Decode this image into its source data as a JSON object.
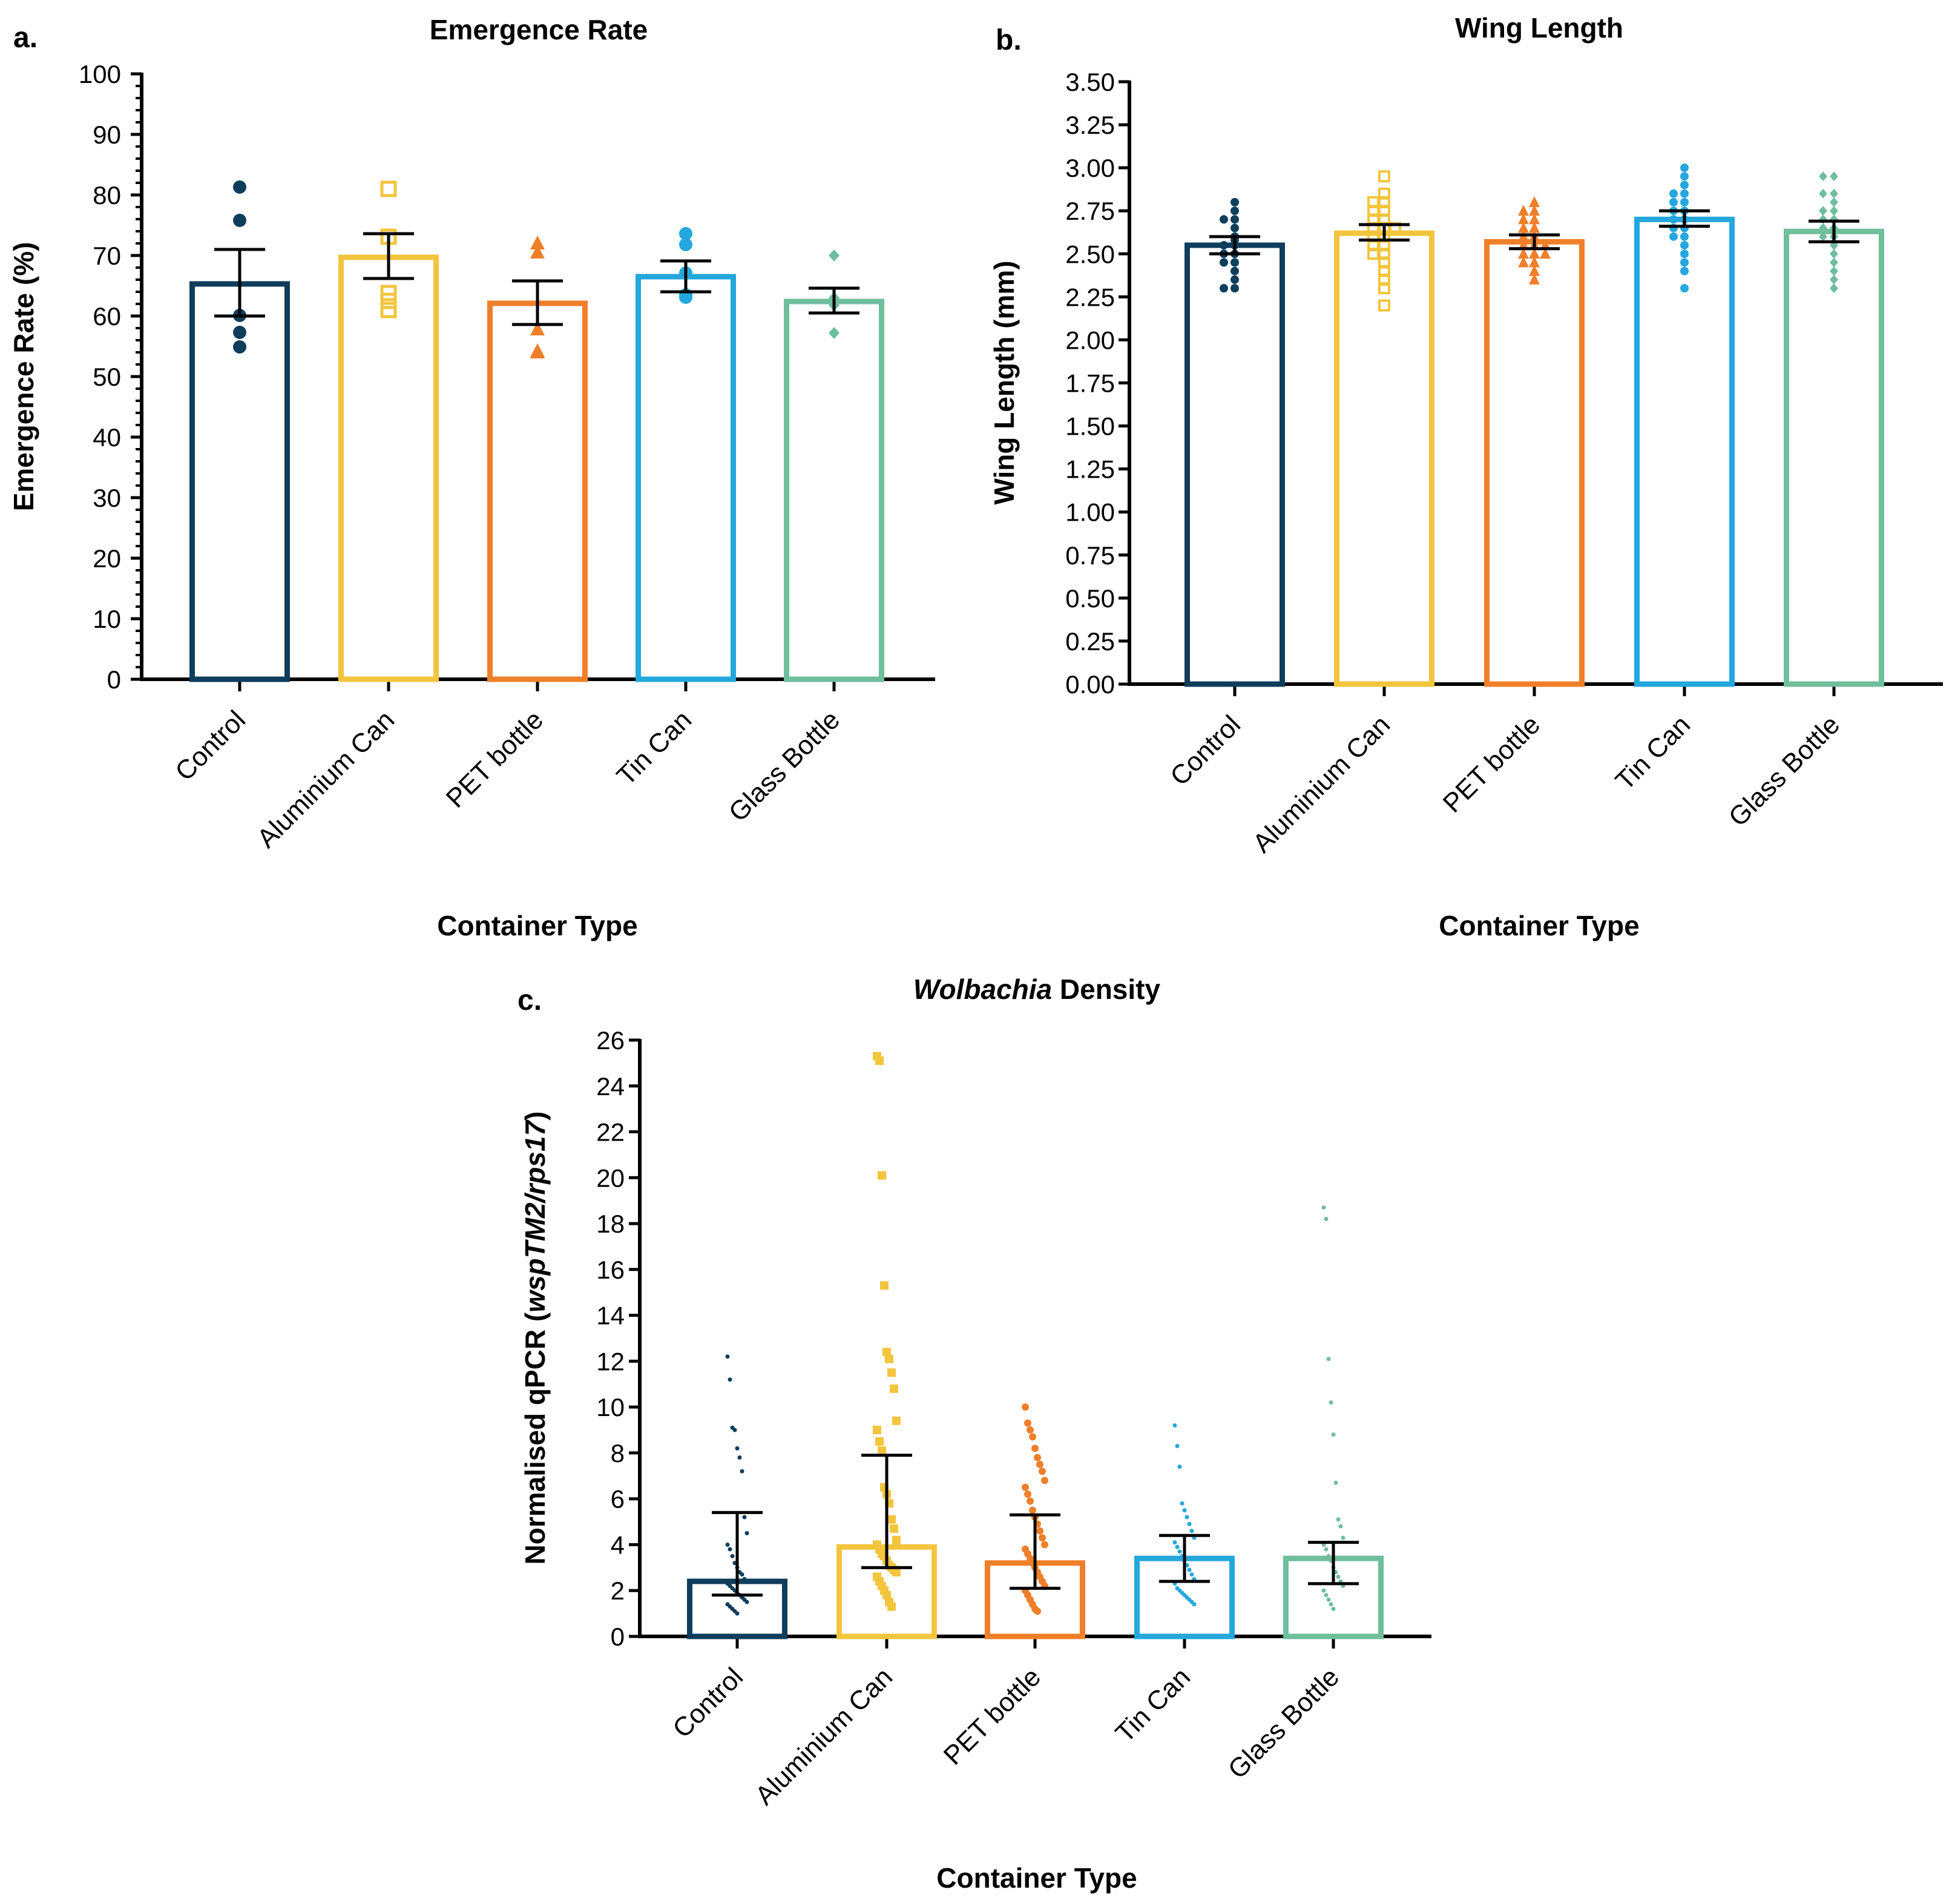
{
  "categories": [
    "Control",
    "Aluminium Can",
    "PET bottle",
    "Tin Can",
    "Glass Bottle"
  ],
  "colors": {
    "Control": "#0F3D5C",
    "Aluminium Can": "#F2C53D",
    "PET bottle": "#F07F2A",
    "Tin Can": "#24A7DC",
    "Glass Bottle": "#6FBE9C",
    "axis": "#000000"
  },
  "chart_data": [
    {
      "panel": "a.",
      "type": "bar",
      "title": "Emergence Rate",
      "xlabel": "Container Type",
      "ylabel": "Emergence Rate (%)",
      "ylim": [
        0,
        100
      ],
      "yticks": [
        "0",
        "10",
        "20",
        "30",
        "40",
        "50",
        "60",
        "70",
        "80",
        "90",
        "100"
      ],
      "marker": "circle",
      "categories": [
        "Control",
        "Aluminium Can",
        "PET bottle",
        "Tin Can",
        "Glass Bottle"
      ],
      "means": [
        65.3,
        69.7,
        62.1,
        66.5,
        62.4
      ],
      "error_low": [
        60.0,
        66.2,
        58.6,
        64.0,
        60.5
      ],
      "error_high": [
        71.0,
        73.6,
        65.8,
        69.1,
        64.6
      ],
      "points": [
        [
          81.3,
          75.8,
          60.1,
          57.3,
          54.9
        ],
        [
          81.0,
          73.1,
          63.8,
          62.5,
          61.0
        ],
        [
          72.0,
          70.5,
          57.8,
          54.2,
          54.0
        ],
        [
          73.6,
          71.8,
          67.1,
          63.5,
          63.1
        ],
        [
          70.0,
          63.0,
          62.1,
          61.8,
          57.2
        ]
      ]
    },
    {
      "panel": "b.",
      "type": "bar",
      "title": "Wing Length",
      "xlabel": "Container Type",
      "ylabel": "Wing Length (mm)",
      "ylim": [
        0,
        3.5
      ],
      "yticks": [
        "0.00",
        "0.25",
        "0.50",
        "0.75",
        "1.00",
        "1.25",
        "1.50",
        "1.75",
        "2.00",
        "2.25",
        "2.50",
        "2.75",
        "3.00",
        "3.25",
        "3.50"
      ],
      "categories": [
        "Control",
        "Aluminium Can",
        "PET bottle",
        "Tin Can",
        "Glass Bottle"
      ],
      "means": [
        2.55,
        2.62,
        2.57,
        2.7,
        2.63
      ],
      "error_low": [
        2.5,
        2.58,
        2.53,
        2.66,
        2.57
      ],
      "error_high": [
        2.6,
        2.67,
        2.61,
        2.75,
        2.69
      ],
      "points": [
        [
          2.8,
          2.75,
          2.7,
          2.7,
          2.65,
          2.6,
          2.58,
          2.55,
          2.55,
          2.5,
          2.5,
          2.45,
          2.45,
          2.4,
          2.35,
          2.3,
          2.3
        ],
        [
          2.95,
          2.85,
          2.8,
          2.8,
          2.75,
          2.75,
          2.7,
          2.7,
          2.65,
          2.65,
          2.65,
          2.6,
          2.6,
          2.55,
          2.55,
          2.5,
          2.5,
          2.45,
          2.4,
          2.35,
          2.3,
          2.2
        ],
        [
          2.8,
          2.75,
          2.75,
          2.7,
          2.7,
          2.65,
          2.65,
          2.6,
          2.6,
          2.55,
          2.55,
          2.55,
          2.5,
          2.5,
          2.5,
          2.45,
          2.45,
          2.4,
          2.35
        ],
        [
          3.0,
          2.95,
          2.9,
          2.85,
          2.85,
          2.8,
          2.8,
          2.75,
          2.75,
          2.7,
          2.7,
          2.65,
          2.65,
          2.6,
          2.6,
          2.55,
          2.5,
          2.45,
          2.4,
          2.3
        ],
        [
          2.95,
          2.95,
          2.85,
          2.85,
          2.8,
          2.75,
          2.75,
          2.7,
          2.7,
          2.65,
          2.65,
          2.6,
          2.6,
          2.55,
          2.5,
          2.45,
          2.4,
          2.35,
          2.3
        ]
      ]
    },
    {
      "panel": "c.",
      "type": "bar",
      "title": "Density",
      "title_italic": "Wolbachia",
      "xlabel": "Container Type",
      "ylabel": "Normalised qPCR (",
      "ylabel_italic": "wspTM2/rps17",
      "ylabel_end": ")",
      "ylim": [
        0,
        26
      ],
      "yticks": [
        "0",
        "2",
        "4",
        "6",
        "8",
        "10",
        "12",
        "14",
        "16",
        "18",
        "20",
        "22",
        "24",
        "26"
      ],
      "categories": [
        "Control",
        "Aluminium Can",
        "PET bottle",
        "Tin Can",
        "Glass Bottle"
      ],
      "means": [
        2.4,
        3.9,
        3.2,
        3.4,
        3.4
      ],
      "error_low": [
        1.8,
        3.0,
        2.1,
        2.4,
        2.3
      ],
      "error_high": [
        5.4,
        7.9,
        5.3,
        4.4,
        4.1
      ],
      "points": [
        [
          12.2,
          11.2,
          9.1,
          9.0,
          8.2,
          7.8,
          7.2,
          5.2,
          4.5,
          4.0,
          3.8,
          3.5,
          3.2,
          3.0,
          2.8,
          2.7,
          2.5,
          2.4,
          2.3,
          2.2,
          2.1,
          2.0,
          1.9,
          1.8,
          1.7,
          1.6,
          1.5,
          1.4,
          1.3,
          1.2,
          1.1,
          1.0
        ],
        [
          25.3,
          25.1,
          20.1,
          15.3,
          12.4,
          12.1,
          11.5,
          10.8,
          9.4,
          9.0,
          8.5,
          8.1,
          6.5,
          6.2,
          5.8,
          5.1,
          4.7,
          4.2,
          4.0,
          3.8,
          3.6,
          3.5,
          3.3,
          3.1,
          3.0,
          2.9,
          2.8,
          2.6,
          2.4,
          2.2,
          2.0,
          1.8,
          1.5,
          1.3
        ],
        [
          10.0,
          9.3,
          9.0,
          8.7,
          8.2,
          7.8,
          7.5,
          7.2,
          6.8,
          6.5,
          6.2,
          5.9,
          5.5,
          5.2,
          4.9,
          4.6,
          4.3,
          4.0,
          3.8,
          3.6,
          3.4,
          3.2,
          3.0,
          2.8,
          2.6,
          2.4,
          2.2,
          2.0,
          1.8,
          1.6,
          1.4,
          1.2,
          1.1
        ],
        [
          9.2,
          8.3,
          7.4,
          5.8,
          5.5,
          5.2,
          4.9,
          4.6,
          4.3,
          4.1,
          3.9,
          3.7,
          3.5,
          3.3,
          3.1,
          2.9,
          2.7,
          2.5,
          2.3,
          2.1,
          2.0,
          1.9,
          1.8,
          1.7,
          1.6,
          1.5,
          1.4
        ],
        [
          18.7,
          18.2,
          12.1,
          10.2,
          8.8,
          6.7,
          5.1,
          4.8,
          4.3,
          4.0,
          3.8,
          3.5,
          3.3,
          3.0,
          2.8,
          2.6,
          2.4,
          2.2,
          2.0,
          1.8,
          1.6,
          1.4,
          1.2
        ]
      ]
    }
  ]
}
